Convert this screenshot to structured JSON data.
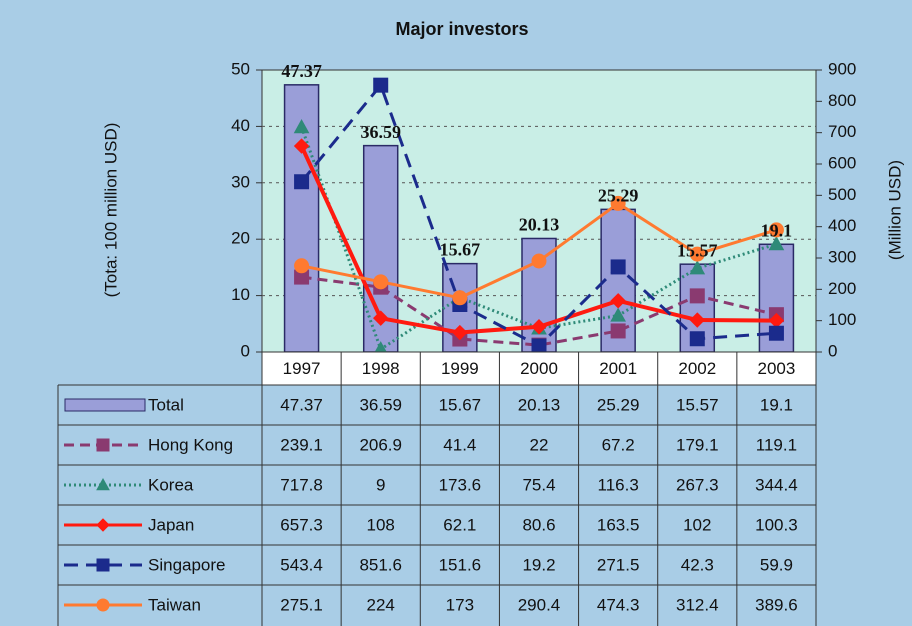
{
  "chart_data": {
    "type": "bar",
    "title": "Major investors",
    "y_label": "(Tota: 100 million USD)",
    "y2_label": "(Million USD)",
    "categories": [
      "1997",
      "1998",
      "1999",
      "2000",
      "2001",
      "2002",
      "2003"
    ],
    "ylim": [
      0,
      50
    ],
    "yticks": [
      0,
      10,
      20,
      30,
      40,
      50
    ],
    "y2lim": [
      0,
      900
    ],
    "y2ticks": [
      0,
      100,
      200,
      300,
      400,
      500,
      600,
      700,
      800,
      900
    ],
    "grid": true,
    "series": [
      {
        "name": "Total",
        "type": "bar",
        "color": "#9a9ed8",
        "values": [
          47.37,
          36.59,
          15.67,
          20.13,
          25.29,
          15.57,
          19.1
        ]
      },
      {
        "name": "Hong Kong",
        "type": "line",
        "axis": "y2",
        "color": "#8a3a70",
        "dash": "10,6",
        "marker": "square",
        "values": [
          239.1,
          206.9,
          41.4,
          22,
          67.2,
          179.1,
          119.1
        ]
      },
      {
        "name": "Korea",
        "type": "line",
        "axis": "y2",
        "color": "#2f8a78",
        "dash": "2,3",
        "marker": "triangle",
        "values": [
          717.8,
          9,
          173.6,
          75.4,
          116.3,
          267.3,
          344.4
        ]
      },
      {
        "name": "Japan",
        "type": "line",
        "axis": "y2",
        "color": "#ff1a10",
        "dash": "none",
        "marker": "diamond",
        "values": [
          657.3,
          108,
          62.1,
          80.6,
          163.5,
          102,
          100.3
        ]
      },
      {
        "name": "Singapore",
        "type": "line",
        "axis": "y2",
        "color": "#1b2b8c",
        "dash": "14,8",
        "marker": "square",
        "values": [
          543.4,
          851.6,
          151.6,
          19.2,
          271.5,
          42.3,
          59.9
        ]
      },
      {
        "name": "Taiwan",
        "type": "line",
        "axis": "y2",
        "color": "#ff7a30",
        "dash": "none",
        "marker": "circle",
        "values": [
          275.1,
          224,
          173,
          290.4,
          474.3,
          312.4,
          389.6
        ]
      }
    ]
  }
}
